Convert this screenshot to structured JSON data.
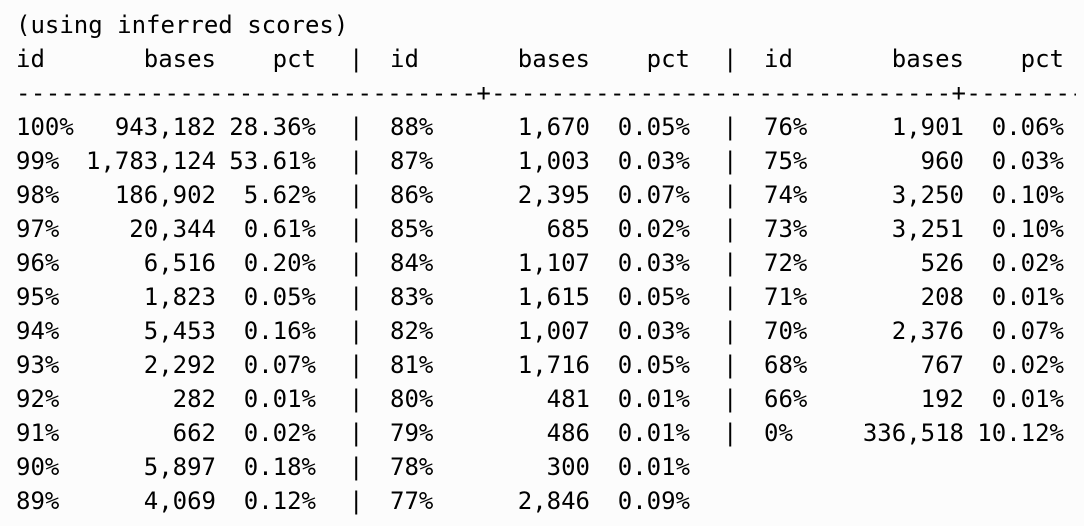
{
  "title": "(using inferred scores)",
  "headers": [
    "id",
    "bases",
    "pct"
  ],
  "separator": "-------------------------------+-------------------------------+------------------------",
  "rows": [
    {
      "a": [
        "100%",
        "943,182",
        "28.36%"
      ],
      "b": [
        "88%",
        "1,670",
        "0.05%"
      ],
      "c": [
        "76%",
        "1,901",
        "0.06%"
      ]
    },
    {
      "a": [
        "99%",
        "1,783,124",
        "53.61%"
      ],
      "b": [
        "87%",
        "1,003",
        "0.03%"
      ],
      "c": [
        "75%",
        "960",
        "0.03%"
      ]
    },
    {
      "a": [
        "98%",
        "186,902",
        "5.62%"
      ],
      "b": [
        "86%",
        "2,395",
        "0.07%"
      ],
      "c": [
        "74%",
        "3,250",
        "0.10%"
      ]
    },
    {
      "a": [
        "97%",
        "20,344",
        "0.61%"
      ],
      "b": [
        "85%",
        "685",
        "0.02%"
      ],
      "c": [
        "73%",
        "3,251",
        "0.10%"
      ]
    },
    {
      "a": [
        "96%",
        "6,516",
        "0.20%"
      ],
      "b": [
        "84%",
        "1,107",
        "0.03%"
      ],
      "c": [
        "72%",
        "526",
        "0.02%"
      ]
    },
    {
      "a": [
        "95%",
        "1,823",
        "0.05%"
      ],
      "b": [
        "83%",
        "1,615",
        "0.05%"
      ],
      "c": [
        "71%",
        "208",
        "0.01%"
      ]
    },
    {
      "a": [
        "94%",
        "5,453",
        "0.16%"
      ],
      "b": [
        "82%",
        "1,007",
        "0.03%"
      ],
      "c": [
        "70%",
        "2,376",
        "0.07%"
      ]
    },
    {
      "a": [
        "93%",
        "2,292",
        "0.07%"
      ],
      "b": [
        "81%",
        "1,716",
        "0.05%"
      ],
      "c": [
        "68%",
        "767",
        "0.02%"
      ]
    },
    {
      "a": [
        "92%",
        "282",
        "0.01%"
      ],
      "b": [
        "80%",
        "481",
        "0.01%"
      ],
      "c": [
        "66%",
        "192",
        "0.01%"
      ]
    },
    {
      "a": [
        "91%",
        "662",
        "0.02%"
      ],
      "b": [
        "79%",
        "486",
        "0.01%"
      ],
      "c": [
        "0%",
        "336,518",
        "10.12%"
      ]
    },
    {
      "a": [
        "90%",
        "5,897",
        "0.18%"
      ],
      "b": [
        "78%",
        "300",
        "0.01%"
      ],
      "c": null
    },
    {
      "a": [
        "89%",
        "4,069",
        "0.12%"
      ],
      "b": [
        "77%",
        "2,846",
        "0.09%"
      ],
      "c": null
    }
  ],
  "pipe": "|"
}
